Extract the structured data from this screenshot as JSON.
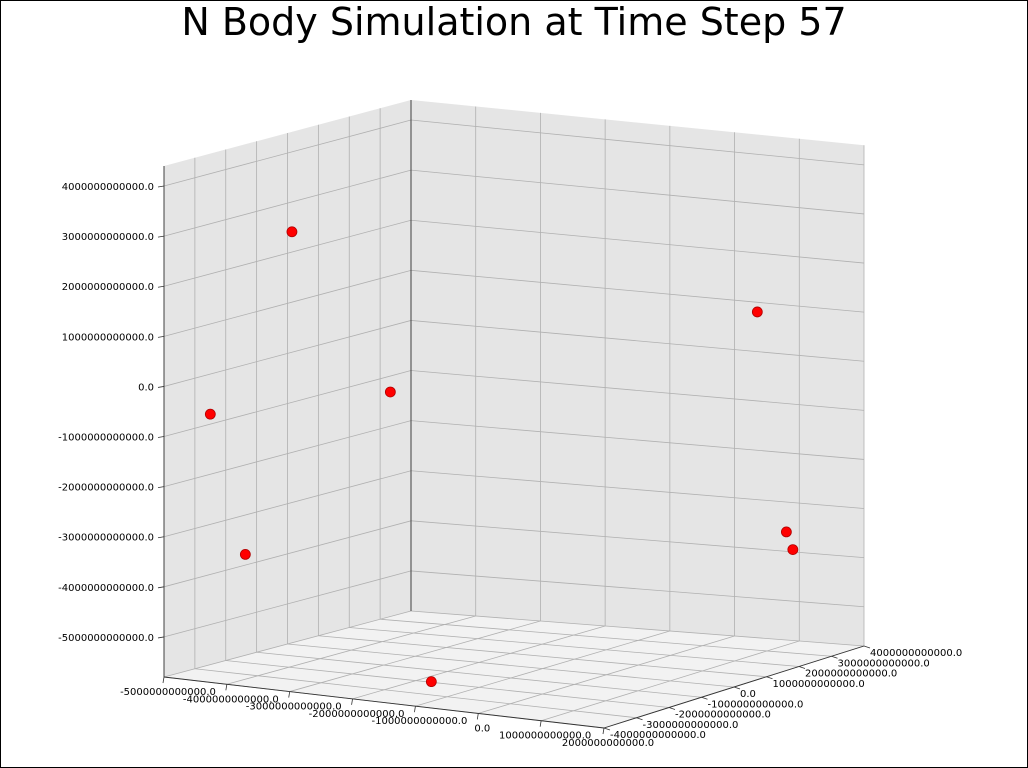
{
  "chart_data": {
    "type": "scatter",
    "title": "N Body Simulation at Time Step 57",
    "projection": "3d",
    "grid": true,
    "pane_color": "#e5e5e5",
    "marker_color": "#ff0000",
    "marker_edge_color": "#b00000",
    "xlim": [
      -5000000000000,
      2000000000000
    ],
    "ylim": [
      -4000000000000,
      4000000000000
    ],
    "zlim": [
      -5800000000000,
      4400000000000
    ],
    "x_ticks": [
      "-5000000000000.0",
      "-4000000000000.0",
      "-3000000000000.0",
      "-2000000000000.0",
      "-1000000000000.0",
      "0.0",
      "1000000000000.0",
      "2000000000000.0"
    ],
    "y_ticks": [
      "4000000000000.0",
      "3000000000000.0",
      "2000000000000.0",
      "1000000000000.0",
      "0.0",
      "-1000000000000.0",
      "-2000000000000.0",
      "-3000000000000.0",
      "-4000000000000.0"
    ],
    "z_ticks": [
      "4000000000000.0",
      "3000000000000.0",
      "2000000000000.0",
      "1000000000000.0",
      "0.0",
      "-1000000000000.0",
      "-2000000000000.0",
      "-3000000000000.0",
      "-4000000000000.0",
      "-5000000000000.0"
    ],
    "points": [
      {
        "x": -4200000000000,
        "y": -1500000000000,
        "z": 2800000000000
      },
      {
        "x": 1100000000000,
        "y": 2500000000000,
        "z": 1200000000000
      },
      {
        "x": -2500000000000,
        "y": -1800000000000,
        "z": -100000000000
      },
      {
        "x": -5000000000000,
        "y": -2500000000000,
        "z": -800000000000
      },
      {
        "x": -4200000000000,
        "y": -3000000000000,
        "z": -3400000000000
      },
      {
        "x": 1200000000000,
        "y": 3200000000000,
        "z": -3400000000000
      },
      {
        "x": 1200000000000,
        "y": 3400000000000,
        "z": -3800000000000
      },
      {
        "x": -1000000000000,
        "y": -3500000000000,
        "z": -5400000000000
      }
    ]
  }
}
